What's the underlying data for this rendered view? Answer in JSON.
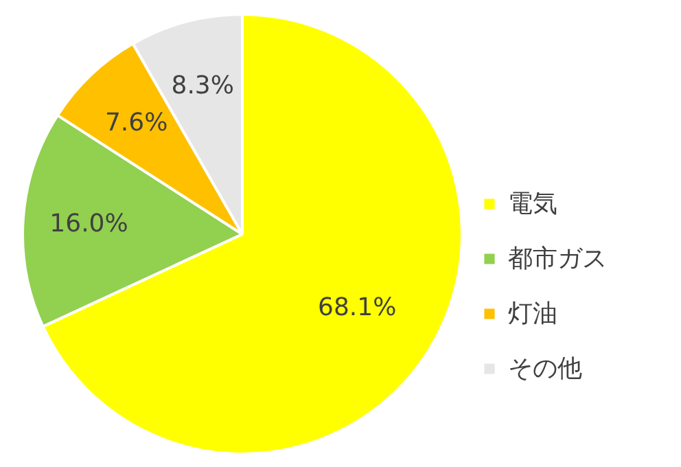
{
  "chart_data": {
    "type": "pie",
    "categories": [
      "電気",
      "都市ガス",
      "灯油",
      "その他"
    ],
    "values": [
      68.1,
      16.0,
      7.6,
      8.3
    ],
    "colors": [
      "#ffff00",
      "#92d050",
      "#ffc000",
      "#e7e6e6"
    ],
    "value_labels": [
      "68.1%",
      "16.0%",
      "7.6%",
      "8.3%"
    ],
    "legend": "right"
  }
}
